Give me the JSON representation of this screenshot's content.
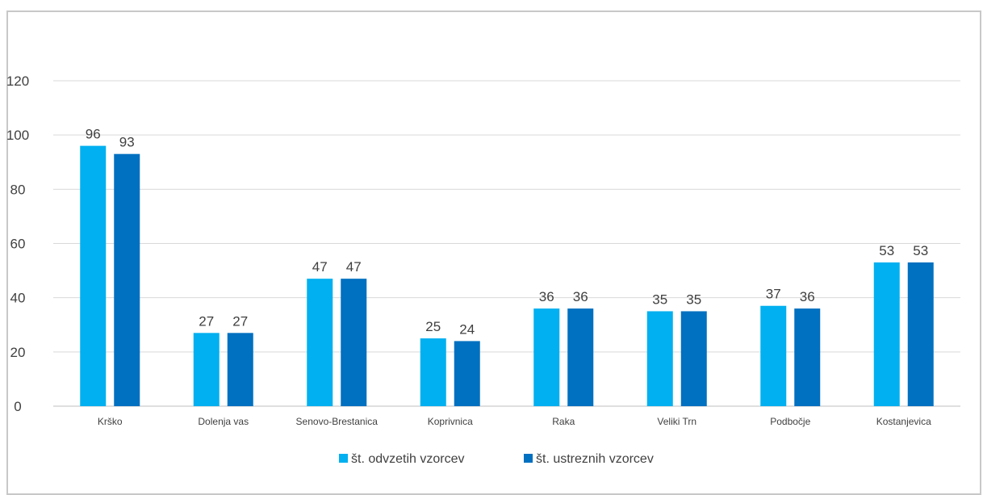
{
  "chart_data": {
    "type": "bar",
    "categories": [
      "Krško",
      "Dolenja vas",
      "Senovo-Brestanica",
      "Koprivnica",
      "Raka",
      "Veliki Trn",
      "Podbočje",
      "Kostanjevica"
    ],
    "series": [
      {
        "name": "št. odvzetih vzorcev",
        "values": [
          96,
          27,
          47,
          25,
          36,
          35,
          37,
          53
        ],
        "color": "#00b0f0"
      },
      {
        "name": "št. ustreznih vzorcev",
        "values": [
          93,
          27,
          47,
          24,
          36,
          35,
          36,
          53
        ],
        "color": "#0070c0"
      }
    ],
    "ylim": [
      0,
      120
    ],
    "yticks": [
      0,
      20,
      40,
      60,
      80,
      100,
      120
    ],
    "grid": true,
    "legend": "bottom",
    "data_labels": true
  }
}
